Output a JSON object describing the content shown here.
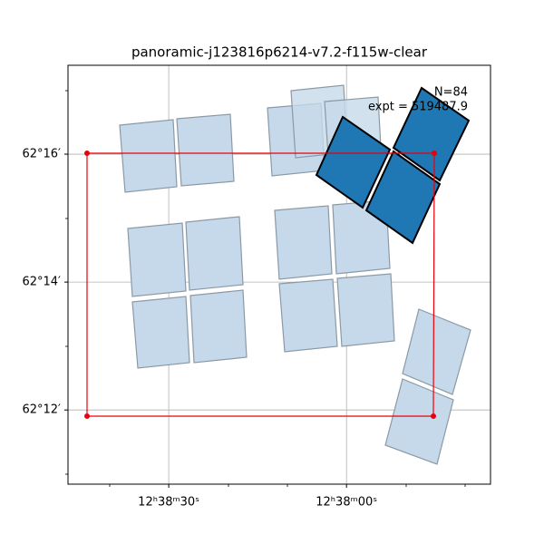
{
  "chart_data": {
    "type": "footprint",
    "title": "panoramic-j123816p6214-v7.2-f115w-clear",
    "annotations": [
      "N=84",
      "expt = 519487.9"
    ],
    "xlim": [
      107.0,
      35.7
    ],
    "xticks": [
      {
        "value": 90,
        "label": "12ʰ38ᵐ30ˢ"
      },
      {
        "value": 60,
        "label": "12ʰ38ᵐ00ˢ"
      }
    ],
    "ylim": [
      10.84,
      17.39
    ],
    "yticks": [
      {
        "value": 12,
        "label": "62°12′"
      },
      {
        "value": 14,
        "label": "62°14′"
      },
      {
        "value": 16,
        "label": "62°16′"
      }
    ],
    "grid": true
  }
}
